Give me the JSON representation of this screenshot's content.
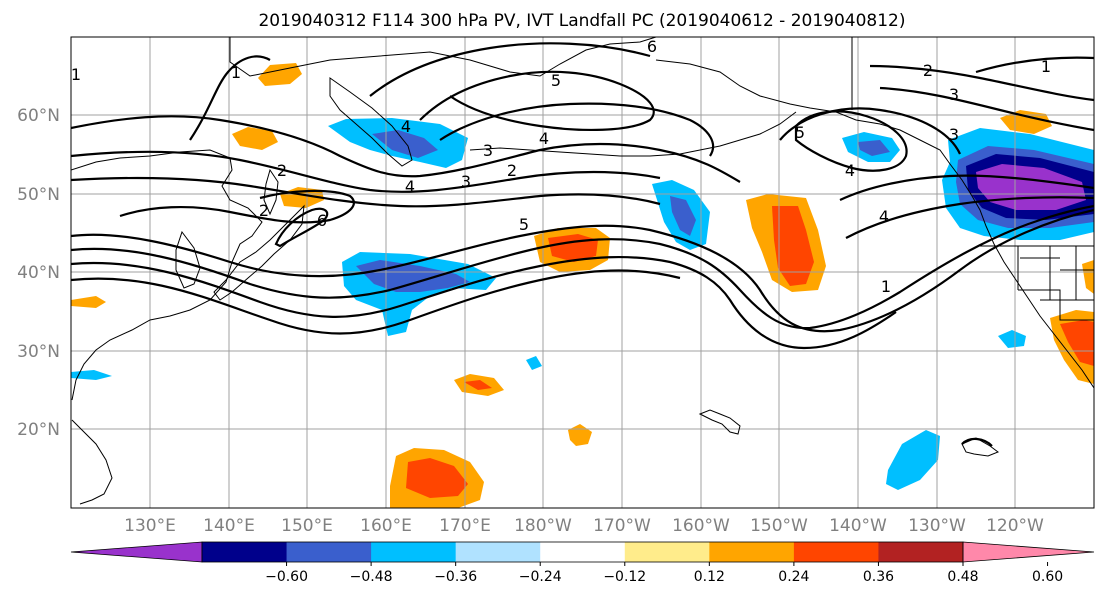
{
  "title": "2019040312 F114 300 hPa PV, IVT Landfall PC (2019040612 - 2019040812)",
  "lat_labels": [
    "60°N",
    "50°N",
    "40°N",
    "30°N",
    "20°N"
  ],
  "lon_labels": [
    "130°E",
    "140°E",
    "150°E",
    "160°E",
    "170°E",
    "180°W",
    "170°W",
    "160°W",
    "150°W",
    "140°W",
    "130°W",
    "120°W"
  ],
  "colorbar": {
    "colors": [
      "#9932cc",
      "#00008b",
      "#3a5fcd",
      "#00bfff",
      "#b0e2ff",
      "#ffffff",
      "#ffec8b",
      "#ffa500",
      "#ff4500",
      "#b22222",
      "#ff88aa"
    ],
    "tick_labels": [
      "−0.60",
      "−0.48",
      "−0.36",
      "−0.24",
      "−0.12",
      "0.12",
      "0.24",
      "0.36",
      "0.48",
      "0.60"
    ]
  },
  "contour_labels": [
    "1",
    "2",
    "2",
    "3",
    "3",
    "4",
    "4",
    "5",
    "5",
    "6",
    "1",
    "2",
    "3",
    "4",
    "5",
    "4",
    "1",
    "2",
    "6",
    "3",
    "1",
    "4"
  ]
}
